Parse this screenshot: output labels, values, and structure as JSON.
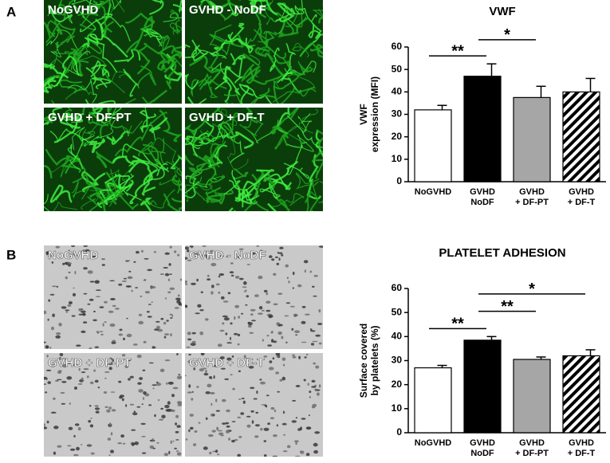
{
  "panels": [
    {
      "label": "A",
      "images": [
        "NoGVHD",
        "GVHD - NoDF",
        "GVHD + DF-PT",
        "GVHD + DF-T"
      ]
    },
    {
      "label": "B",
      "images": [
        "NoGVHD",
        "GVHD - NoDF",
        "GVHD + DF-PT",
        "GVHD + DF-T"
      ]
    }
  ],
  "chart_data": [
    {
      "type": "bar",
      "title": "VWF",
      "y_label": "VWF\nexpression (MFI)",
      "categories": [
        "NoGVHD",
        "GVHD\nNoDF",
        "GVHD\n+ DF-PT",
        "GVHD\n+ DF-T"
      ],
      "values": [
        32,
        47,
        37.5,
        40
      ],
      "errors": [
        2,
        5.5,
        5,
        6
      ],
      "colors": [
        "#ffffff",
        "#000000",
        "#a6a6a6",
        "#ffffff"
      ],
      "hatch": [
        false,
        false,
        false,
        true
      ],
      "ylim": [
        0,
        60
      ],
      "yticks": [
        0,
        10,
        20,
        30,
        40,
        50,
        60
      ],
      "annotations": [
        {
          "text": "**",
          "from": 0,
          "to": 1
        },
        {
          "text": "*",
          "from": 1,
          "to": 2
        }
      ]
    },
    {
      "type": "bar",
      "title": "PLATELET ADHESION",
      "y_label": "Surface covered\nby platelets (%)",
      "categories": [
        "NoGVHD",
        "GVHD\nNoDF",
        "GVHD\n+ DF-PT",
        "GVHD\n+ DF-T"
      ],
      "values": [
        27,
        38.5,
        30.5,
        32
      ],
      "errors": [
        1,
        1.5,
        1,
        2.5
      ],
      "colors": [
        "#ffffff",
        "#000000",
        "#a6a6a6",
        "#ffffff"
      ],
      "hatch": [
        false,
        false,
        false,
        true
      ],
      "ylim": [
        0,
        60
      ],
      "yticks": [
        0,
        10,
        20,
        30,
        40,
        50,
        60
      ],
      "annotations": [
        {
          "text": "**",
          "from": 0,
          "to": 1
        },
        {
          "text": "**",
          "from": 1,
          "to": 2
        },
        {
          "text": "*",
          "from": 1,
          "to": 3
        }
      ]
    }
  ]
}
